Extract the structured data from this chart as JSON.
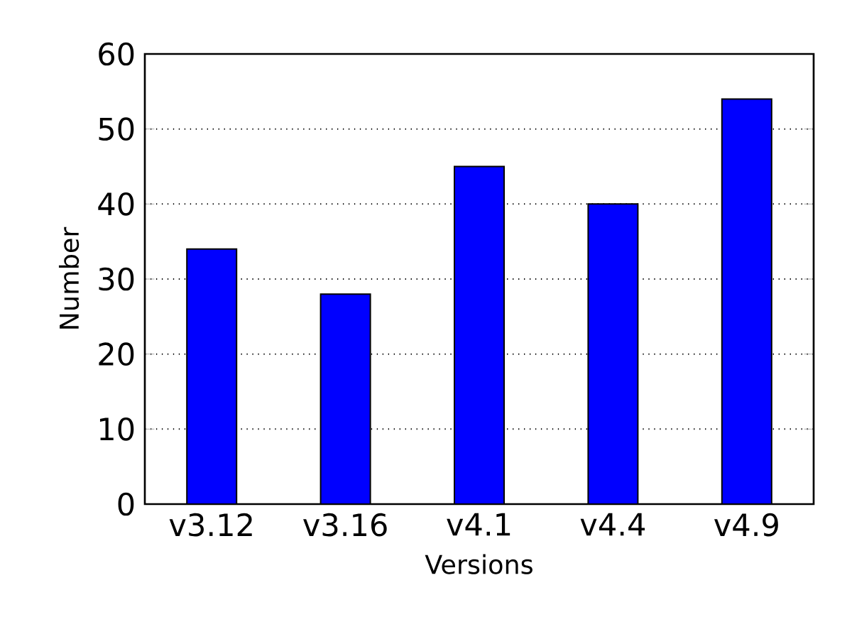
{
  "chart_data": {
    "type": "bar",
    "xlabel": "Versions",
    "ylabel": "Number",
    "categories": [
      "v3.12",
      "v3.16",
      "v4.1",
      "v4.4",
      "v4.9"
    ],
    "values": [
      34,
      28,
      45,
      40,
      54
    ],
    "color": "#0000ff",
    "ylim": [
      0,
      60
    ],
    "yticks": [
      0,
      10,
      20,
      30,
      40,
      50,
      60
    ],
    "grid": "y"
  }
}
